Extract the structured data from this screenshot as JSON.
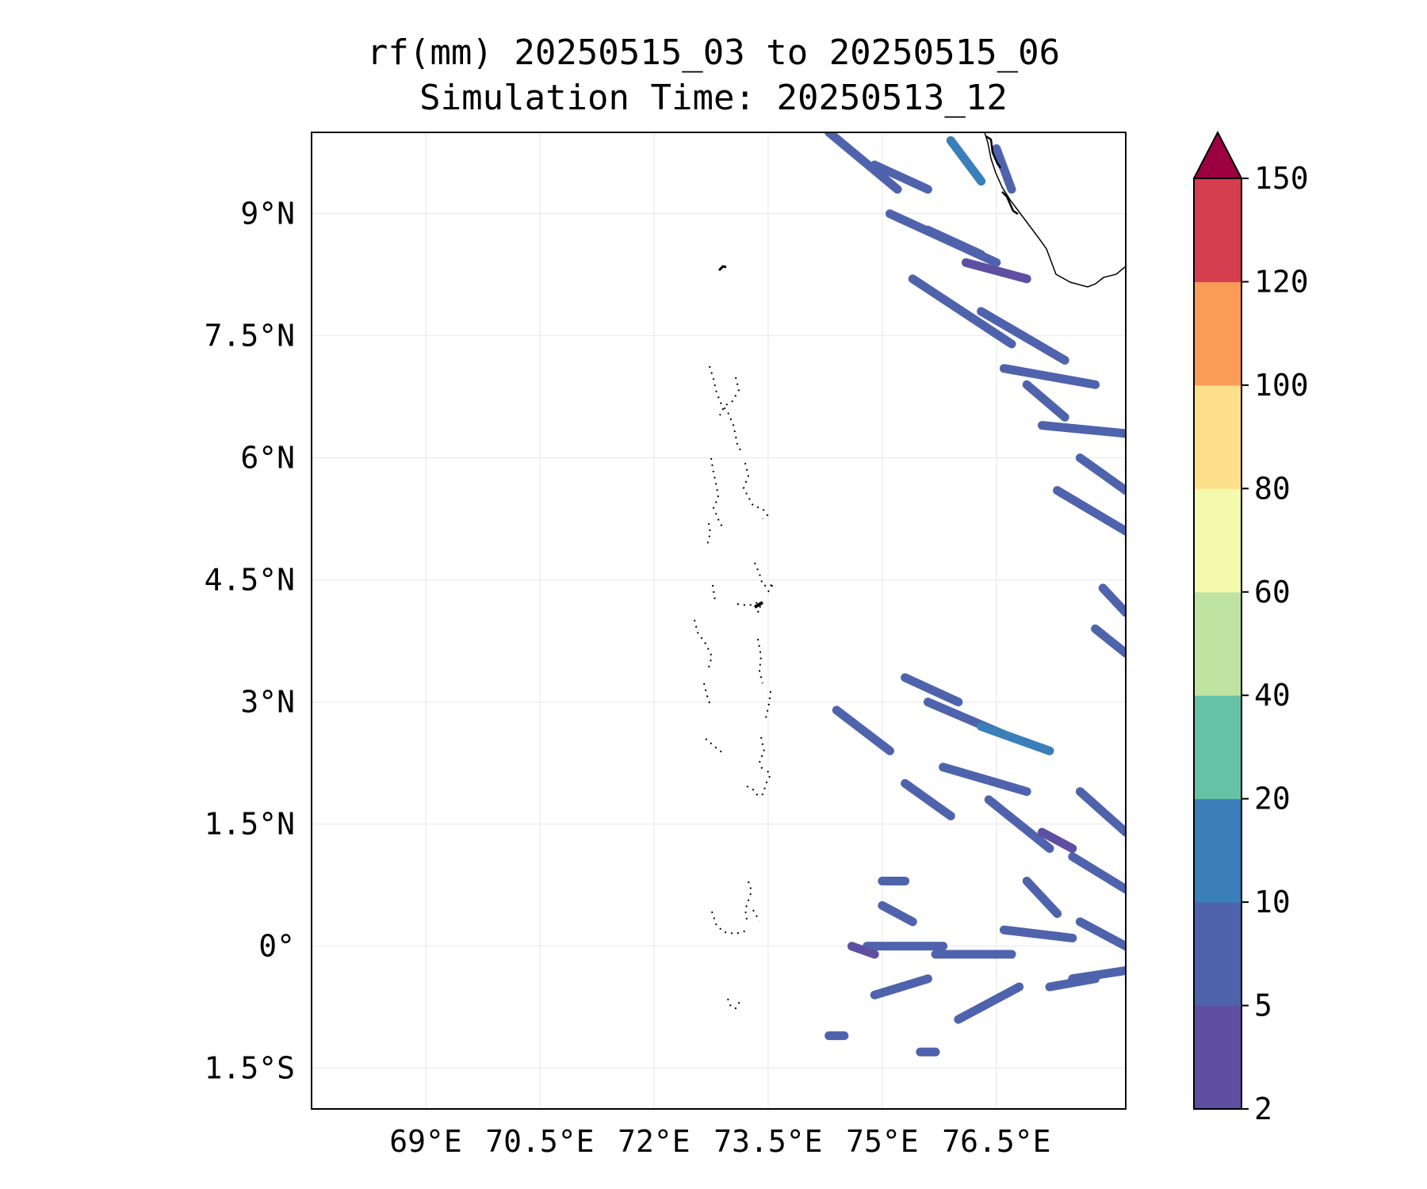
{
  "title_line1": "rf(mm) 20250515_03 to 20250515_06",
  "title_line2": "Simulation Time: 20250513_12",
  "map": {
    "lon_range": [
      67.5,
      78.2
    ],
    "lat_range": [
      -2.0,
      10.0
    ],
    "lon_ticks": [
      {
        "value": 69.0,
        "label": "69°E"
      },
      {
        "value": 70.5,
        "label": "70.5°E"
      },
      {
        "value": 72.0,
        "label": "72°E"
      },
      {
        "value": 73.5,
        "label": "73.5°E"
      },
      {
        "value": 75.0,
        "label": "75°E"
      },
      {
        "value": 76.5,
        "label": "76.5°E"
      }
    ],
    "lat_ticks": [
      {
        "value": 9.0,
        "label": "9°N"
      },
      {
        "value": 7.5,
        "label": "7.5°N"
      },
      {
        "value": 6.0,
        "label": "6°N"
      },
      {
        "value": 4.5,
        "label": "4.5°N"
      },
      {
        "value": 3.0,
        "label": "3°N"
      },
      {
        "value": 1.5,
        "label": "1.5°N"
      },
      {
        "value": 0.0,
        "label": "0°"
      },
      {
        "value": -1.5,
        "label": "1.5°S"
      }
    ],
    "grid": true,
    "coastline_color": "#000000",
    "rain_streaks": [
      {
        "a": [
          74.3,
          10.0
        ],
        "b": [
          75.2,
          9.3
        ],
        "level": 5
      },
      {
        "a": [
          74.9,
          9.6
        ],
        "b": [
          75.6,
          9.3
        ],
        "level": 5
      },
      {
        "a": [
          75.1,
          9.0
        ],
        "b": [
          76.5,
          8.4
        ],
        "level": 5
      },
      {
        "a": [
          75.6,
          8.8
        ],
        "b": [
          76.3,
          8.5
        ],
        "level": 5
      },
      {
        "a": [
          75.4,
          8.2
        ],
        "b": [
          76.7,
          7.4
        ],
        "level": 5
      },
      {
        "a": [
          76.3,
          7.8
        ],
        "b": [
          77.4,
          7.2
        ],
        "level": 5
      },
      {
        "a": [
          76.6,
          7.1
        ],
        "b": [
          77.8,
          6.9
        ],
        "level": 5
      },
      {
        "a": [
          76.9,
          6.9
        ],
        "b": [
          77.4,
          6.5
        ],
        "level": 5
      },
      {
        "a": [
          77.1,
          6.4
        ],
        "b": [
          78.2,
          6.3
        ],
        "level": 5
      },
      {
        "a": [
          77.6,
          6.0
        ],
        "b": [
          78.2,
          5.6
        ],
        "level": 5
      },
      {
        "a": [
          77.3,
          5.6
        ],
        "b": [
          78.2,
          5.1
        ],
        "level": 5
      },
      {
        "a": [
          77.9,
          4.4
        ],
        "b": [
          78.2,
          4.1
        ],
        "level": 5
      },
      {
        "a": [
          77.8,
          3.9
        ],
        "b": [
          78.2,
          3.6
        ],
        "level": 5
      },
      {
        "a": [
          76.1,
          8.4
        ],
        "b": [
          76.9,
          8.2
        ],
        "level": 2
      },
      {
        "a": [
          75.9,
          9.9
        ],
        "b": [
          76.3,
          9.4
        ],
        "level": 10
      },
      {
        "a": [
          76.5,
          9.8
        ],
        "b": [
          76.7,
          9.3
        ],
        "level": 5
      },
      {
        "a": [
          75.3,
          3.3
        ],
        "b": [
          76.0,
          3.0
        ],
        "level": 5
      },
      {
        "a": [
          75.6,
          3.0
        ],
        "b": [
          76.6,
          2.6
        ],
        "level": 5
      },
      {
        "a": [
          76.3,
          2.7
        ],
        "b": [
          77.2,
          2.4
        ],
        "level": 10
      },
      {
        "a": [
          74.4,
          2.9
        ],
        "b": [
          75.1,
          2.4
        ],
        "level": 5
      },
      {
        "a": [
          75.3,
          2.0
        ],
        "b": [
          75.9,
          1.6
        ],
        "level": 5
      },
      {
        "a": [
          76.4,
          1.8
        ],
        "b": [
          77.2,
          1.2
        ],
        "level": 5
      },
      {
        "a": [
          75.8,
          2.2
        ],
        "b": [
          76.9,
          1.9
        ],
        "level": 5
      },
      {
        "a": [
          77.1,
          1.4
        ],
        "b": [
          77.5,
          1.2
        ],
        "level": 2
      },
      {
        "a": [
          77.6,
          1.9
        ],
        "b": [
          78.2,
          1.4
        ],
        "level": 5
      },
      {
        "a": [
          77.5,
          1.1
        ],
        "b": [
          78.2,
          0.7
        ],
        "level": 5
      },
      {
        "a": [
          76.9,
          0.8
        ],
        "b": [
          77.3,
          0.4
        ],
        "level": 5
      },
      {
        "a": [
          74.8,
          -0.0
        ],
        "b": [
          75.8,
          0.0
        ],
        "level": 5
      },
      {
        "a": [
          75.7,
          -0.1
        ],
        "b": [
          76.7,
          -0.1
        ],
        "level": 5
      },
      {
        "a": [
          76.6,
          0.2
        ],
        "b": [
          77.5,
          0.1
        ],
        "level": 5
      },
      {
        "a": [
          77.6,
          0.3
        ],
        "b": [
          78.2,
          0.0
        ],
        "level": 5
      },
      {
        "a": [
          74.9,
          -0.6
        ],
        "b": [
          75.6,
          -0.4
        ],
        "level": 5
      },
      {
        "a": [
          76.0,
          -0.9
        ],
        "b": [
          76.8,
          -0.5
        ],
        "level": 5
      },
      {
        "a": [
          77.2,
          -0.5
        ],
        "b": [
          77.8,
          -0.4
        ],
        "level": 5
      },
      {
        "a": [
          77.5,
          -0.4
        ],
        "b": [
          78.2,
          -0.3
        ],
        "level": 5
      },
      {
        "a": [
          74.6,
          0.0
        ],
        "b": [
          74.9,
          -0.1
        ],
        "level": 2
      },
      {
        "a": [
          75.0,
          0.8
        ],
        "b": [
          75.3,
          0.8
        ],
        "level": 5
      },
      {
        "a": [
          75.0,
          0.5
        ],
        "b": [
          75.4,
          0.3
        ],
        "level": 5
      },
      {
        "a": [
          75.5,
          -1.3
        ],
        "b": [
          75.7,
          -1.3
        ],
        "level": 5
      },
      {
        "a": [
          74.3,
          -1.1
        ],
        "b": [
          74.5,
          -1.1
        ],
        "level": 5
      }
    ]
  },
  "colorbar": {
    "levels": [
      2,
      5,
      10,
      20,
      40,
      60,
      80,
      100,
      120,
      150
    ],
    "labels": [
      "2",
      "5",
      "10",
      "20",
      "40",
      "60",
      "80",
      "100",
      "120",
      "150"
    ],
    "colors": [
      "#5e4fa2",
      "#4f63ad",
      "#3a7fb9",
      "#66c2a5",
      "#bfe3a0",
      "#f4faad",
      "#fee08b",
      "#fb9b58",
      "#d53e4f"
    ],
    "extend_color": "#9e0142",
    "extend": "max"
  }
}
